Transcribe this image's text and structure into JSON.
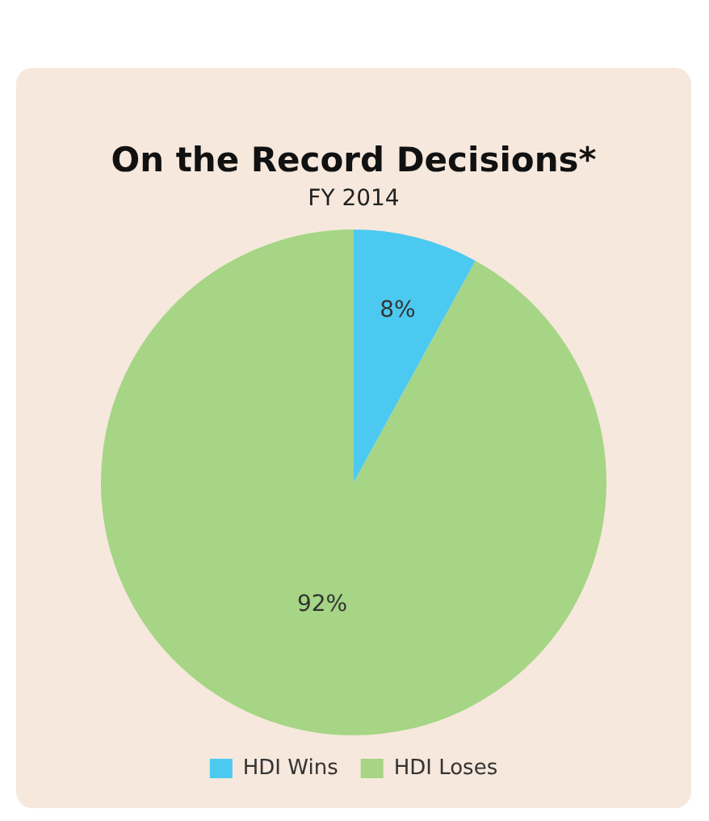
{
  "chart_data": {
    "type": "pie",
    "title": "On the Record Decisions*",
    "subtitle": "FY 2014",
    "categories": [
      "HDI Wins",
      "HDI Loses"
    ],
    "values": [
      8,
      92
    ],
    "colors": [
      "#4cc9f0",
      "#a5d585"
    ],
    "value_labels": [
      "8%",
      "92%"
    ],
    "legend": "bottom"
  }
}
